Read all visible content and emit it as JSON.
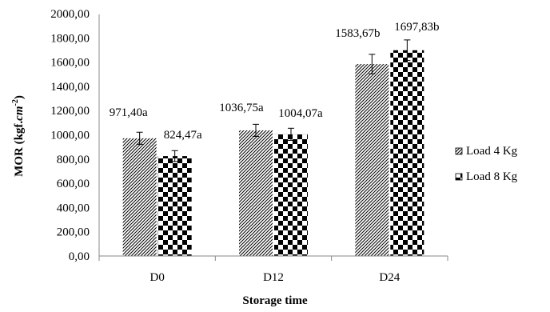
{
  "chart_data": {
    "type": "bar",
    "xlabel": "Storage time",
    "ylabel_main": "MOR (kgf.",
    "ylabel_unit": "cm",
    "ylabel_exp": "-2",
    "ylabel_close": ")",
    "categories": [
      "D0",
      "D12",
      "D24"
    ],
    "yticks": [
      "0,00",
      "200,00",
      "400,00",
      "600,00",
      "800,00",
      "1000,00",
      "1200,00",
      "1400,00",
      "1600,00",
      "1800,00",
      "2000,00"
    ],
    "ylim": [
      0,
      2000
    ],
    "y_step": 200,
    "grid": false,
    "legend_position": "right",
    "series": [
      {
        "name": "Load 4 Kg",
        "pattern": "diagonal-hatch",
        "values": [
          971.4,
          1036.75,
          1583.67
        ],
        "errors": [
          50,
          50,
          80
        ],
        "labels": [
          "971,40a",
          "1036,75a",
          "1583,67b"
        ]
      },
      {
        "name": "Load 8 Kg",
        "pattern": "checkerboard",
        "values": [
          824.47,
          1004.07,
          1697.83
        ],
        "errors": [
          45,
          50,
          85
        ],
        "labels": [
          "824,47a",
          "1004,07a",
          "1697,83b"
        ]
      }
    ]
  }
}
